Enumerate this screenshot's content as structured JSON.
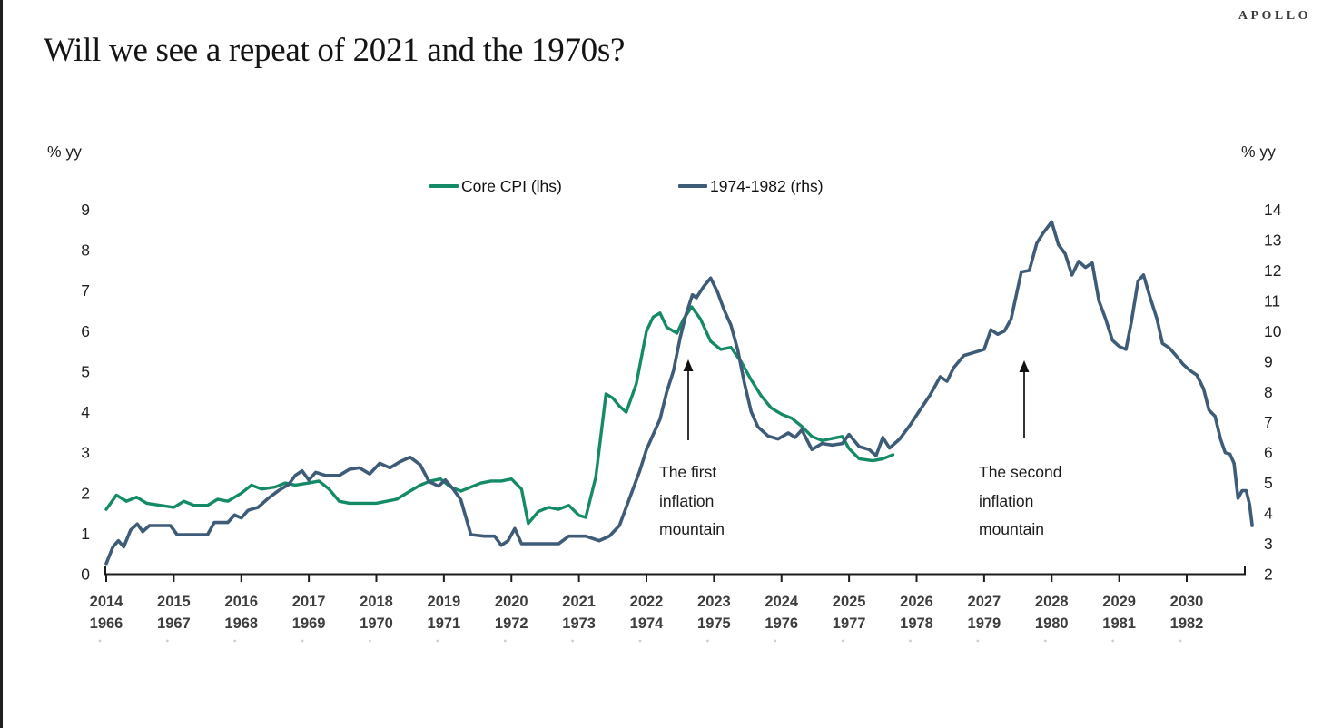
{
  "brand": "APOLLO",
  "title": "Will we see a repeat of 2021 and the 1970s?",
  "axis_units": {
    "left": "% yy",
    "right": "% yy"
  },
  "legend": [
    {
      "label": "Core CPI (lhs)",
      "color": "#158a67"
    },
    {
      "label": "1974-1982 (rhs)",
      "color": "#3e5c78"
    }
  ],
  "annotations": [
    {
      "lines": [
        "The first",
        "inflation",
        "mountain"
      ]
    },
    {
      "lines": [
        "The second",
        "inflation",
        "mountain"
      ]
    }
  ],
  "chart_data": {
    "type": "line",
    "title": "Will we see a repeat of 2021 and the 1970s?",
    "left_axis": {
      "label": "% yy",
      "range": [
        0,
        9
      ],
      "ticks": [
        0,
        1,
        2,
        3,
        4,
        5,
        6,
        7,
        8,
        9
      ]
    },
    "right_axis": {
      "label": "% yy",
      "range": [
        2,
        14
      ],
      "ticks": [
        2,
        3,
        4,
        5,
        6,
        7,
        8,
        9,
        10,
        11,
        12,
        13,
        14
      ]
    },
    "x_axis": {
      "top_labels": [
        "2014",
        "2015",
        "2016",
        "2017",
        "2018",
        "2019",
        "2020",
        "2021",
        "2022",
        "2023",
        "2024",
        "2025",
        "2026",
        "2027",
        "2028",
        "2029",
        "2030"
      ],
      "bottom_labels": [
        "1966",
        "1967",
        "1968",
        "1969",
        "1970",
        "1971",
        "1972",
        "1973",
        "1974",
        "1975",
        "1976",
        "1977",
        "1978",
        "1979",
        "1980",
        "1981",
        "1982"
      ],
      "grid": false
    },
    "series": [
      {
        "name": "Core CPI (lhs)",
        "axis": "left",
        "color": "#158a67",
        "points": [
          [
            2014.0,
            1.6
          ],
          [
            2014.15,
            1.95
          ],
          [
            2014.3,
            1.8
          ],
          [
            2014.45,
            1.9
          ],
          [
            2014.6,
            1.75
          ],
          [
            2014.8,
            1.7
          ],
          [
            2015.0,
            1.65
          ],
          [
            2015.15,
            1.8
          ],
          [
            2015.3,
            1.7
          ],
          [
            2015.5,
            1.7
          ],
          [
            2015.65,
            1.85
          ],
          [
            2015.8,
            1.8
          ],
          [
            2016.0,
            2.0
          ],
          [
            2016.15,
            2.2
          ],
          [
            2016.3,
            2.1
          ],
          [
            2016.5,
            2.15
          ],
          [
            2016.65,
            2.25
          ],
          [
            2016.8,
            2.2
          ],
          [
            2017.0,
            2.25
          ],
          [
            2017.15,
            2.3
          ],
          [
            2017.3,
            2.1
          ],
          [
            2017.45,
            1.8
          ],
          [
            2017.6,
            1.75
          ],
          [
            2017.8,
            1.75
          ],
          [
            2018.0,
            1.75
          ],
          [
            2018.15,
            1.8
          ],
          [
            2018.3,
            1.85
          ],
          [
            2018.5,
            2.05
          ],
          [
            2018.65,
            2.2
          ],
          [
            2018.8,
            2.3
          ],
          [
            2018.95,
            2.35
          ],
          [
            2019.1,
            2.15
          ],
          [
            2019.25,
            2.05
          ],
          [
            2019.4,
            2.15
          ],
          [
            2019.55,
            2.25
          ],
          [
            2019.7,
            2.3
          ],
          [
            2019.85,
            2.3
          ],
          [
            2020.0,
            2.35
          ],
          [
            2020.15,
            2.1
          ],
          [
            2020.25,
            1.25
          ],
          [
            2020.4,
            1.55
          ],
          [
            2020.55,
            1.65
          ],
          [
            2020.7,
            1.6
          ],
          [
            2020.85,
            1.7
          ],
          [
            2021.0,
            1.45
          ],
          [
            2021.1,
            1.4
          ],
          [
            2021.25,
            2.4
          ],
          [
            2021.4,
            4.45
          ],
          [
            2021.5,
            4.35
          ],
          [
            2021.6,
            4.15
          ],
          [
            2021.7,
            4.0
          ],
          [
            2021.85,
            4.7
          ],
          [
            2022.0,
            6.0
          ],
          [
            2022.1,
            6.35
          ],
          [
            2022.2,
            6.45
          ],
          [
            2022.3,
            6.1
          ],
          [
            2022.45,
            5.95
          ],
          [
            2022.55,
            6.3
          ],
          [
            2022.67,
            6.6
          ],
          [
            2022.8,
            6.3
          ],
          [
            2022.95,
            5.75
          ],
          [
            2023.1,
            5.55
          ],
          [
            2023.25,
            5.6
          ],
          [
            2023.4,
            5.25
          ],
          [
            2023.55,
            4.8
          ],
          [
            2023.7,
            4.4
          ],
          [
            2023.85,
            4.1
          ],
          [
            2024.0,
            3.95
          ],
          [
            2024.15,
            3.85
          ],
          [
            2024.3,
            3.65
          ],
          [
            2024.45,
            3.4
          ],
          [
            2024.6,
            3.3
          ],
          [
            2024.75,
            3.35
          ],
          [
            2024.9,
            3.4
          ],
          [
            2025.0,
            3.1
          ],
          [
            2025.15,
            2.85
          ],
          [
            2025.35,
            2.8
          ],
          [
            2025.5,
            2.85
          ],
          [
            2025.65,
            2.95
          ]
        ]
      },
      {
        "name": "1974-1982 (rhs)",
        "axis": "right",
        "color": "#3e5c78",
        "points": [
          [
            2014.0,
            2.35
          ],
          [
            2014.1,
            2.9
          ],
          [
            2014.18,
            3.1
          ],
          [
            2014.26,
            2.9
          ],
          [
            2014.36,
            3.45
          ],
          [
            2014.46,
            3.65
          ],
          [
            2014.54,
            3.4
          ],
          [
            2014.64,
            3.6
          ],
          [
            2014.8,
            3.6
          ],
          [
            2014.95,
            3.6
          ],
          [
            2015.05,
            3.3
          ],
          [
            2015.3,
            3.3
          ],
          [
            2015.5,
            3.3
          ],
          [
            2015.6,
            3.7
          ],
          [
            2015.8,
            3.7
          ],
          [
            2015.9,
            3.95
          ],
          [
            2016.0,
            3.85
          ],
          [
            2016.1,
            4.1
          ],
          [
            2016.25,
            4.2
          ],
          [
            2016.4,
            4.5
          ],
          [
            2016.55,
            4.75
          ],
          [
            2016.7,
            4.95
          ],
          [
            2016.8,
            5.25
          ],
          [
            2016.9,
            5.4
          ],
          [
            2017.0,
            5.1
          ],
          [
            2017.1,
            5.35
          ],
          [
            2017.25,
            5.25
          ],
          [
            2017.45,
            5.25
          ],
          [
            2017.6,
            5.45
          ],
          [
            2017.75,
            5.5
          ],
          [
            2017.9,
            5.3
          ],
          [
            2018.05,
            5.65
          ],
          [
            2018.2,
            5.5
          ],
          [
            2018.35,
            5.7
          ],
          [
            2018.5,
            5.85
          ],
          [
            2018.65,
            5.6
          ],
          [
            2018.78,
            5.05
          ],
          [
            2018.92,
            4.9
          ],
          [
            2019.02,
            5.1
          ],
          [
            2019.12,
            4.85
          ],
          [
            2019.25,
            4.45
          ],
          [
            2019.4,
            3.3
          ],
          [
            2019.6,
            3.25
          ],
          [
            2019.75,
            3.25
          ],
          [
            2019.85,
            2.95
          ],
          [
            2019.95,
            3.1
          ],
          [
            2020.05,
            3.5
          ],
          [
            2020.15,
            3.0
          ],
          [
            2020.35,
            3.0
          ],
          [
            2020.55,
            3.0
          ],
          [
            2020.7,
            3.0
          ],
          [
            2020.85,
            3.25
          ],
          [
            2021.1,
            3.25
          ],
          [
            2021.3,
            3.1
          ],
          [
            2021.45,
            3.25
          ],
          [
            2021.6,
            3.6
          ],
          [
            2021.75,
            4.5
          ],
          [
            2021.9,
            5.4
          ],
          [
            2022.0,
            6.1
          ],
          [
            2022.1,
            6.6
          ],
          [
            2022.2,
            7.1
          ],
          [
            2022.3,
            8.0
          ],
          [
            2022.4,
            8.7
          ],
          [
            2022.5,
            9.8
          ],
          [
            2022.58,
            10.5
          ],
          [
            2022.68,
            11.2
          ],
          [
            2022.74,
            11.1
          ],
          [
            2022.84,
            11.45
          ],
          [
            2022.95,
            11.75
          ],
          [
            2023.05,
            11.3
          ],
          [
            2023.15,
            10.7
          ],
          [
            2023.25,
            10.2
          ],
          [
            2023.35,
            9.4
          ],
          [
            2023.45,
            8.3
          ],
          [
            2023.55,
            7.35
          ],
          [
            2023.65,
            6.85
          ],
          [
            2023.8,
            6.55
          ],
          [
            2023.95,
            6.45
          ],
          [
            2024.1,
            6.65
          ],
          [
            2024.2,
            6.5
          ],
          [
            2024.3,
            6.75
          ],
          [
            2024.45,
            6.1
          ],
          [
            2024.6,
            6.3
          ],
          [
            2024.75,
            6.25
          ],
          [
            2024.9,
            6.3
          ],
          [
            2025.0,
            6.6
          ],
          [
            2025.15,
            6.2
          ],
          [
            2025.3,
            6.1
          ],
          [
            2025.4,
            5.9
          ],
          [
            2025.5,
            6.5
          ],
          [
            2025.6,
            6.15
          ],
          [
            2025.75,
            6.45
          ],
          [
            2025.9,
            6.9
          ],
          [
            2026.05,
            7.4
          ],
          [
            2026.2,
            7.9
          ],
          [
            2026.35,
            8.5
          ],
          [
            2026.45,
            8.35
          ],
          [
            2026.55,
            8.8
          ],
          [
            2026.7,
            9.2
          ],
          [
            2026.85,
            9.3
          ],
          [
            2027.0,
            9.4
          ],
          [
            2027.1,
            10.05
          ],
          [
            2027.2,
            9.9
          ],
          [
            2027.3,
            10.0
          ],
          [
            2027.4,
            10.4
          ],
          [
            2027.55,
            11.95
          ],
          [
            2027.67,
            12.0
          ],
          [
            2027.78,
            12.9
          ],
          [
            2027.88,
            13.25
          ],
          [
            2028.0,
            13.6
          ],
          [
            2028.1,
            12.85
          ],
          [
            2028.2,
            12.55
          ],
          [
            2028.3,
            11.85
          ],
          [
            2028.4,
            12.3
          ],
          [
            2028.5,
            12.1
          ],
          [
            2028.6,
            12.25
          ],
          [
            2028.7,
            11.0
          ],
          [
            2028.8,
            10.4
          ],
          [
            2028.9,
            9.7
          ],
          [
            2029.0,
            9.5
          ],
          [
            2029.1,
            9.4
          ],
          [
            2029.18,
            10.3
          ],
          [
            2029.28,
            11.65
          ],
          [
            2029.36,
            11.85
          ],
          [
            2029.46,
            11.1
          ],
          [
            2029.56,
            10.4
          ],
          [
            2029.64,
            9.6
          ],
          [
            2029.74,
            9.45
          ],
          [
            2029.84,
            9.2
          ],
          [
            2029.95,
            8.9
          ],
          [
            2030.05,
            8.7
          ],
          [
            2030.15,
            8.55
          ],
          [
            2030.25,
            8.1
          ],
          [
            2030.33,
            7.4
          ],
          [
            2030.42,
            7.2
          ],
          [
            2030.5,
            6.45
          ],
          [
            2030.57,
            6.0
          ],
          [
            2030.64,
            5.95
          ],
          [
            2030.7,
            5.65
          ],
          [
            2030.76,
            4.5
          ],
          [
            2030.82,
            4.75
          ],
          [
            2030.88,
            4.75
          ],
          [
            2030.93,
            4.3
          ],
          [
            2030.97,
            3.6
          ]
        ]
      }
    ],
    "legend_position": "top-center"
  }
}
